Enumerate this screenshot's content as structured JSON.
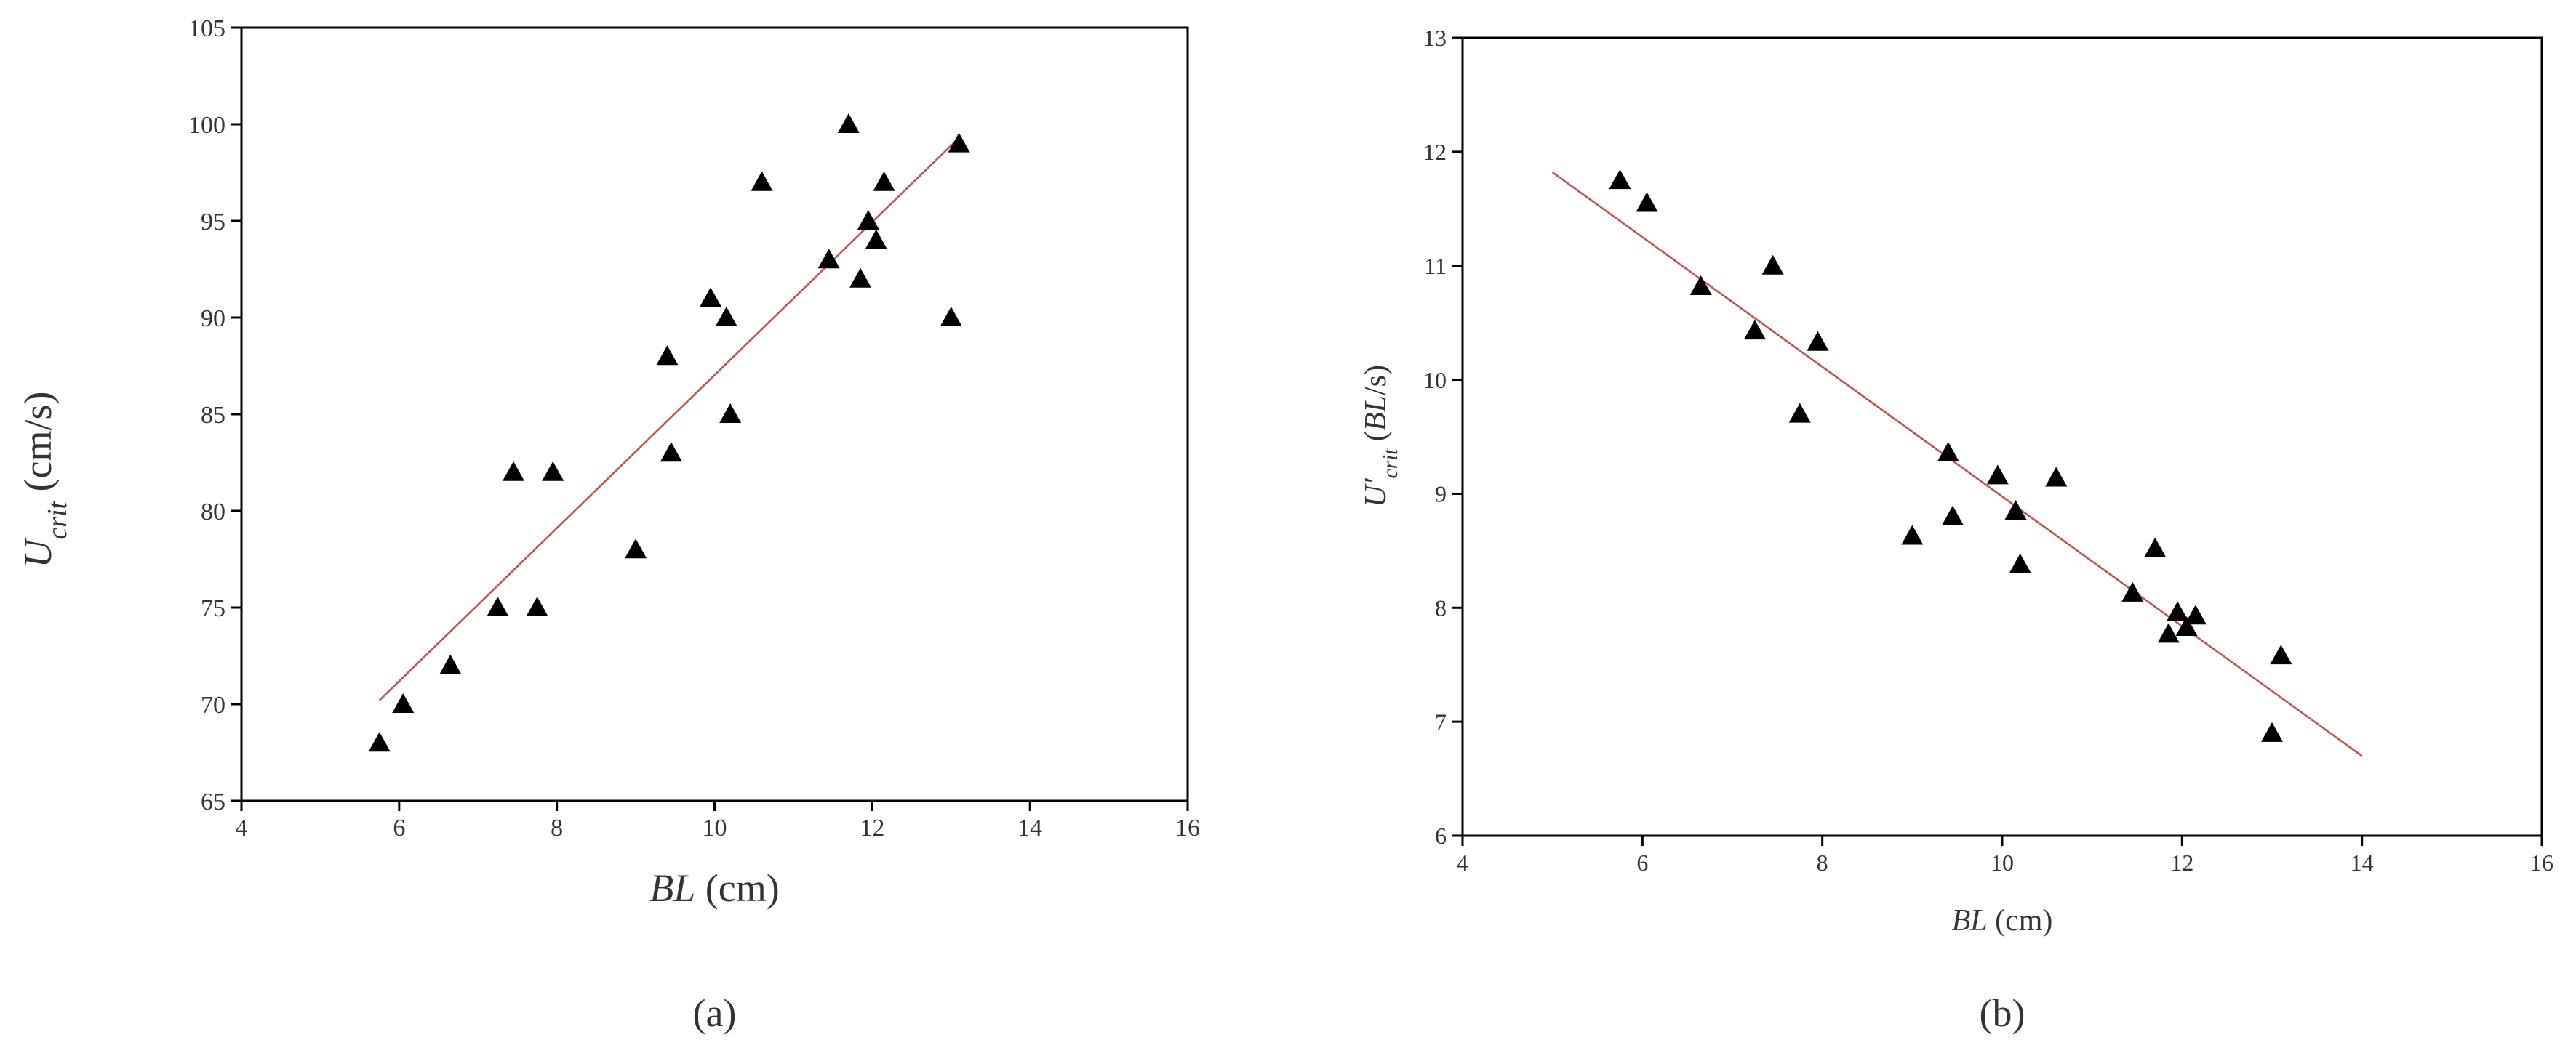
{
  "chart_data": [
    {
      "type": "scatter",
      "panel_label": "(a)",
      "x_label": [
        {
          "text": "BL",
          "italic": true
        },
        {
          "text": " (cm)"
        }
      ],
      "y_label": [
        {
          "text": "U",
          "italic": true
        },
        {
          "text": "crit",
          "italic": true,
          "sub": true
        },
        {
          "text": " (cm/s)"
        }
      ],
      "marker": "triangle",
      "color": "#000000",
      "x": [
        5.75,
        6.05,
        6.65,
        7.25,
        7.45,
        7.75,
        7.95,
        9.0,
        9.4,
        9.45,
        9.95,
        10.15,
        10.2,
        10.6,
        11.45,
        11.7,
        11.85,
        11.95,
        12.05,
        12.15,
        13.0,
        13.1
      ],
      "values": [
        68,
        70,
        72,
        75,
        82,
        75,
        82,
        78,
        88,
        83,
        91,
        90,
        85,
        97,
        93,
        100,
        92,
        95,
        94,
        97,
        90,
        99
      ],
      "trendline": {
        "color": "#c0504d",
        "x": [
          5.75,
          13.1
        ],
        "values": [
          70.2,
          99.3
        ]
      },
      "xlim": [
        4,
        16
      ],
      "xticks": [
        4,
        6,
        8,
        10,
        12,
        14,
        16
      ],
      "ylim": [
        65,
        105
      ],
      "yticks": [
        65,
        70,
        75,
        80,
        85,
        90,
        95,
        100,
        105
      ]
    },
    {
      "type": "scatter",
      "panel_label": "(b)",
      "x_label": [
        {
          "text": "BL",
          "italic": true
        },
        {
          "text": " (cm)"
        }
      ],
      "y_label": [
        {
          "text": "U′",
          "italic": true
        },
        {
          "text": "crit",
          "italic": true,
          "sub": true
        },
        {
          "text": " ("
        },
        {
          "text": "BL",
          "italic": true
        },
        {
          "text": "/s)"
        }
      ],
      "marker": "triangle",
      "color": "#000000",
      "x": [
        5.75,
        6.05,
        6.65,
        7.25,
        7.45,
        7.75,
        7.95,
        9.0,
        9.4,
        9.45,
        9.95,
        10.15,
        10.2,
        10.6,
        11.45,
        11.7,
        11.85,
        11.95,
        12.05,
        12.15,
        13.0,
        13.1
      ],
      "values": [
        11.75,
        11.55,
        10.82,
        10.43,
        11.0,
        9.7,
        10.33,
        8.63,
        9.36,
        8.8,
        9.16,
        8.85,
        8.38,
        9.14,
        8.13,
        8.52,
        7.77,
        7.96,
        7.83,
        7.93,
        6.9,
        7.58
      ],
      "trendline": {
        "color": "#c0504d",
        "x": [
          5,
          14
        ],
        "values": [
          11.82,
          6.7
        ]
      },
      "xlim": [
        4,
        16
      ],
      "xticks": [
        4,
        6,
        8,
        10,
        12,
        14,
        16
      ],
      "ylim": [
        6,
        13
      ],
      "yticks": [
        6,
        7,
        8,
        9,
        10,
        11,
        12,
        13
      ]
    }
  ]
}
